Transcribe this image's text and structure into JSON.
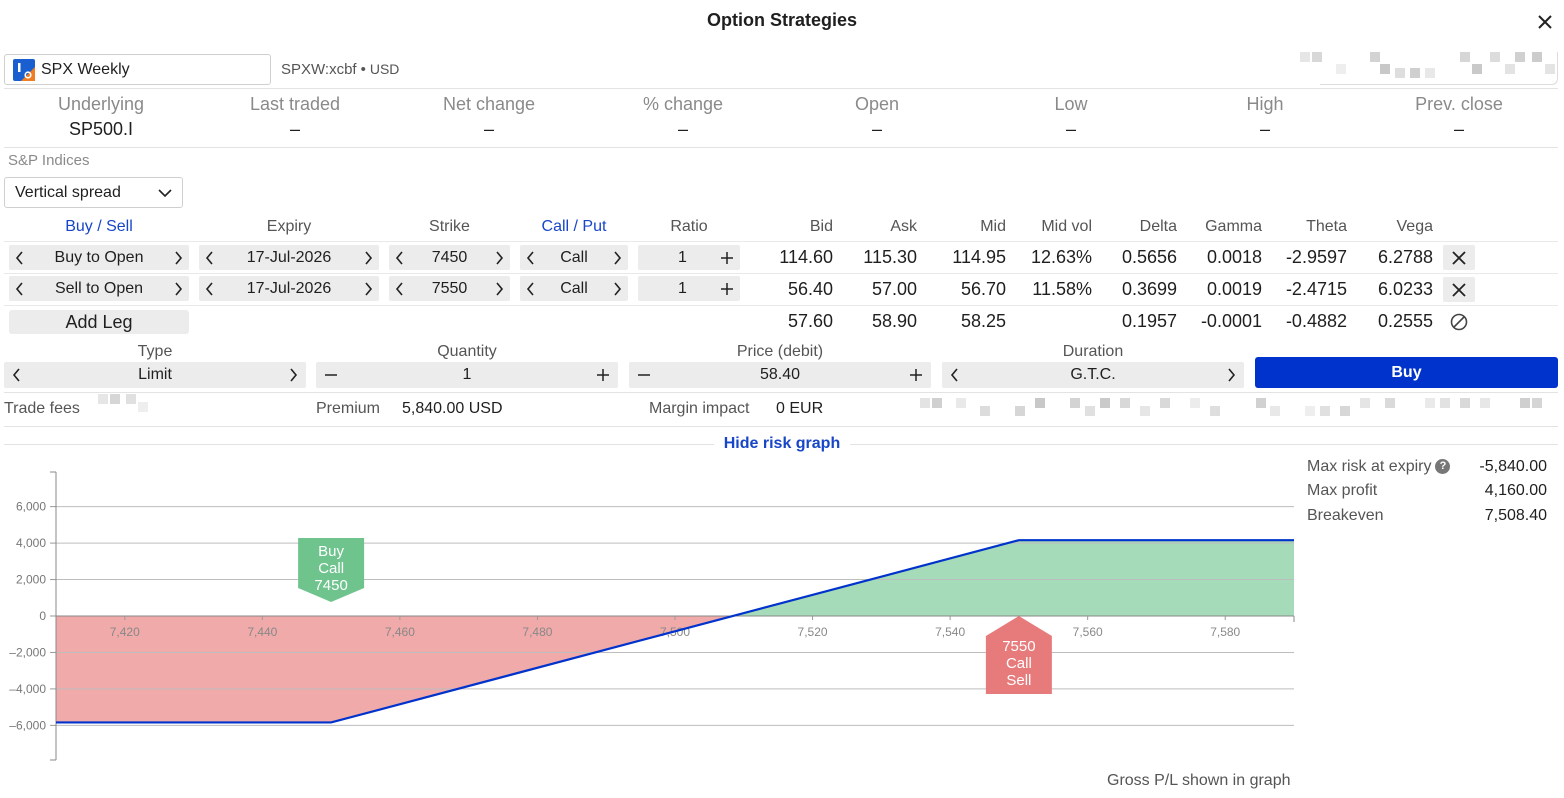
{
  "dialog": {
    "title": "Option Strategies"
  },
  "instrument": {
    "name": "SPX Weekly",
    "code": "SPXW:xcbf",
    "currency": "USD"
  },
  "quote": [
    {
      "label": "Underlying",
      "value": "SP500.I"
    },
    {
      "label": "Last traded",
      "value": "–"
    },
    {
      "label": "Net change",
      "value": "–"
    },
    {
      "label": "% change",
      "value": "–"
    },
    {
      "label": "Open",
      "value": "–"
    },
    {
      "label": "Low",
      "value": "–"
    },
    {
      "label": "High",
      "value": "–"
    },
    {
      "label": "Prev. close",
      "value": "–"
    }
  ],
  "group_label": "S&P Indices",
  "strategy": {
    "selected": "Vertical spread"
  },
  "leg_headers": {
    "side": "Buy / Sell",
    "expiry": "Expiry",
    "strike": "Strike",
    "callput": "Call / Put",
    "ratio": "Ratio",
    "bid": "Bid",
    "ask": "Ask",
    "mid": "Mid",
    "midvol": "Mid vol",
    "delta": "Delta",
    "gamma": "Gamma",
    "theta": "Theta",
    "vega": "Vega"
  },
  "legs": [
    {
      "side": "Buy to Open",
      "expiry": "17-Jul-2026",
      "strike": "7450",
      "callput": "Call",
      "ratio": "1",
      "bid": "114.60",
      "ask": "115.30",
      "mid": "114.95",
      "midvol": "12.63%",
      "delta": "0.5656",
      "gamma": "0.0018",
      "theta": "-2.9597",
      "vega": "6.2788"
    },
    {
      "side": "Sell to Open",
      "expiry": "17-Jul-2026",
      "strike": "7550",
      "callput": "Call",
      "ratio": "1",
      "bid": "56.40",
      "ask": "57.00",
      "mid": "56.70",
      "midvol": "11.58%",
      "delta": "0.3699",
      "gamma": "0.0019",
      "theta": "-2.4715",
      "vega": "6.0233"
    }
  ],
  "totals": {
    "bid": "57.60",
    "ask": "58.90",
    "mid": "58.25",
    "delta": "0.1957",
    "gamma": "-0.0001",
    "theta": "-0.4882",
    "vega": "0.2555"
  },
  "add_leg_label": "Add Leg",
  "order": {
    "type_label": "Type",
    "type_value": "Limit",
    "quantity_label": "Quantity",
    "quantity_value": "1",
    "price_label": "Price (debit)",
    "price_value": "58.40",
    "duration_label": "Duration",
    "duration_value": "G.T.C.",
    "buy_label": "Buy"
  },
  "fees": {
    "trade_fees_label": "Trade fees",
    "premium_label": "Premium",
    "premium_value": "5,840.00 USD",
    "margin_label": "Margin impact",
    "margin_value": "0 EUR"
  },
  "risk_toggle_label": "Hide risk graph",
  "risk_stats": [
    {
      "label": "Max risk at expiry",
      "value": "-5,840.00"
    },
    {
      "label": "Max profit",
      "value": "4,160.00"
    },
    {
      "label": "Breakeven",
      "value": "7,508.40"
    }
  ],
  "footnote": "Gross P/L shown in graph",
  "colors": {
    "accent": "#1746c9",
    "buy_button": "#0033cc",
    "profit_fill": "#a5dbb8",
    "loss_fill": "#f0aaaa",
    "payoff_line": "#0033cc",
    "buy_marker": "#6fc48e",
    "sell_marker": "#e77b7b"
  },
  "chart_data": {
    "type": "line",
    "title": "",
    "xlabel": "",
    "ylabel": "",
    "x_ticks": [
      7420,
      7440,
      7460,
      7480,
      7500,
      7520,
      7540,
      7560,
      7580
    ],
    "x_tick_labels": [
      "7,420",
      "7,440",
      "7,460",
      "7,480",
      "7,500",
      "7,520",
      "7,540",
      "7,560",
      "7,580"
    ],
    "y_ticks": [
      6000,
      4000,
      2000,
      0,
      -2000,
      -4000,
      -6000
    ],
    "y_tick_labels": [
      "6,000",
      "4,000",
      "2,000",
      "0",
      "–2,000",
      "–4,000",
      "–6,000"
    ],
    "xlim": [
      7410,
      7590
    ],
    "ylim": [
      -7900,
      7900
    ],
    "series": [
      {
        "x": [
          7410,
          7450,
          7550,
          7590
        ],
        "values": [
          -5840,
          -5840,
          4160,
          4160
        ]
      }
    ],
    "markers": [
      {
        "strike": 7450,
        "lines": [
          "Buy",
          "Call",
          "7450"
        ],
        "kind": "buy"
      },
      {
        "strike": 7550,
        "lines": [
          "7550",
          "Call",
          "Sell"
        ],
        "kind": "sell"
      }
    ],
    "grid": true
  }
}
